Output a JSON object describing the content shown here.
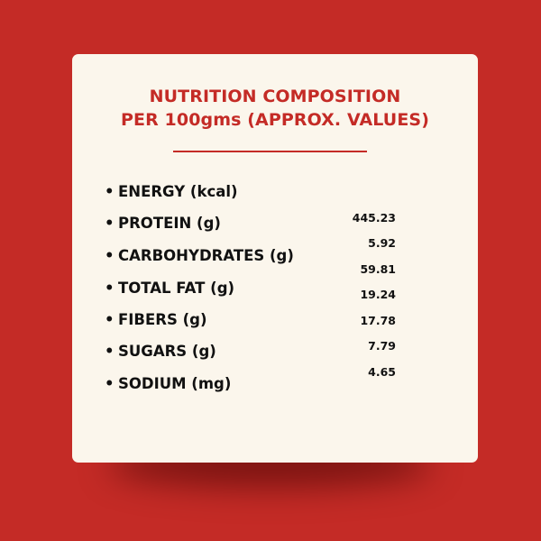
{
  "title": {
    "line1": "NUTRITION COMPOSITION",
    "line2": "PER 100gms (APPROX. VALUES)"
  },
  "bullet_char": "•",
  "labels": [
    "ENERGY (kcal)",
    "PROTEIN (g)",
    "CARBOHYDRATES (g)",
    "TOTAL FAT (g)",
    "FIBERS (g)",
    "SUGARS (g)",
    "SODIUM (mg)"
  ],
  "values": [
    "445.23",
    "5.92",
    "59.81",
    "19.24",
    "17.78",
    "7.79",
    "4.65"
  ],
  "colors": {
    "background": "#c42b26",
    "card": "#fbf6ec",
    "accent": "#c42b26",
    "text": "#111111"
  }
}
